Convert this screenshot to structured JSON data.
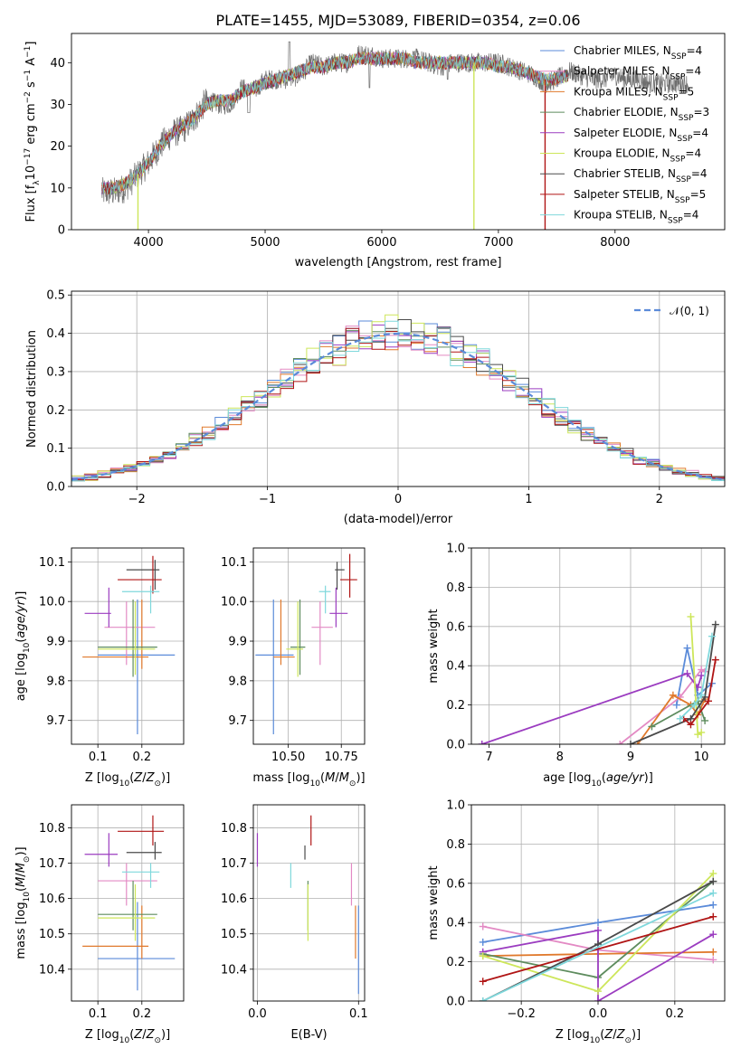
{
  "figure_title": "PLATE=1455, MJD=53089, FIBERID=0354, z=0.06",
  "colors": {
    "Chabrier MILES": "#5b8bd9",
    "Salpeter MILES": "#e38ac4",
    "Kroupa MILES": "#e0792c",
    "Chabrier ELODIE": "#5e8c5e",
    "Salpeter ELODIE": "#9b3cc0",
    "Kroupa ELODIE": "#cde65a",
    "Chabrier STELIB": "#4a4a4a",
    "Salpeter STELIB": "#b01515",
    "Kroupa STELIB": "#7fd8dc",
    "normal": "#5b8bd9"
  },
  "legend_spectrum": [
    {
      "name": "Chabrier MILES",
      "label": "Chabrier MILES, N",
      "sub": "SSP",
      "suffix": "=4"
    },
    {
      "name": "Salpeter MILES",
      "label": "Salpeter MILES, N",
      "sub": "SSP",
      "suffix": "=4"
    },
    {
      "name": "Kroupa MILES",
      "label": "Kroupa MILES, N",
      "sub": "SSP",
      "suffix": "=5"
    },
    {
      "name": "Chabrier ELODIE",
      "label": "Chabrier ELODIE, N",
      "sub": "SSP",
      "suffix": "=3"
    },
    {
      "name": "Salpeter ELODIE",
      "label": "Salpeter ELODIE, N",
      "sub": "SSP",
      "suffix": "=4"
    },
    {
      "name": "Kroupa ELODIE",
      "label": "Kroupa ELODIE, N",
      "sub": "SSP",
      "suffix": "=4"
    },
    {
      "name": "Chabrier STELIB",
      "label": "Chabrier STELIB, N",
      "sub": "SSP",
      "suffix": "=4"
    },
    {
      "name": "Salpeter STELIB",
      "label": "Salpeter STELIB, N",
      "sub": "SSP",
      "suffix": "=5"
    },
    {
      "name": "Kroupa STELIB",
      "label": "Kroupa STELIB, N",
      "sub": "SSP",
      "suffix": "=4"
    }
  ],
  "chart_data": [
    {
      "id": "spectrum",
      "type": "line",
      "xlabel": "wavelength [Angstrom, rest frame]",
      "ylabel": "Flux [f_λ 10^-17 erg cm^-2 s^-1 A^-1]",
      "xlim": [
        3340,
        8940
      ],
      "ylim": [
        0,
        47
      ],
      "xticks": [
        4000,
        5000,
        6000,
        7000,
        8000
      ],
      "yticks": [
        0,
        10,
        20,
        30,
        40
      ],
      "grid": false,
      "legend": "right",
      "data_wavelength": [
        3600,
        3700,
        3800,
        3900,
        4000,
        4100,
        4200,
        4300,
        4400,
        4500,
        4600,
        4700,
        4800,
        4900,
        5000,
        5100,
        5200,
        5300,
        5400,
        5500,
        5600,
        5700,
        5800,
        5900,
        6000,
        6100,
        6200,
        6300,
        6400,
        6500,
        6600,
        6700,
        6800,
        6900,
        7000,
        7100,
        7200,
        7300,
        7400,
        7500,
        7600,
        7700,
        7800,
        7900,
        8000,
        8100,
        8200,
        8300,
        8400,
        8500,
        8600
      ],
      "data_flux": [
        9,
        9,
        10,
        13,
        16,
        20,
        23,
        24,
        27,
        31,
        30,
        30,
        34,
        33,
        36,
        36,
        36,
        37,
        40,
        39,
        40,
        40,
        42,
        42,
        41,
        41,
        41,
        41,
        40,
        39,
        40,
        40,
        40,
        40,
        40,
        39,
        38,
        37,
        35,
        36,
        38,
        37,
        36,
        36,
        37,
        36,
        36,
        35,
        35,
        35,
        35
      ],
      "model_flux": [
        10,
        10,
        11,
        13,
        16,
        20,
        23,
        25,
        27,
        30,
        31,
        31,
        33,
        34,
        35,
        36,
        37,
        38,
        39,
        39,
        40,
        40,
        41,
        41,
        41,
        41,
        41,
        40,
        40,
        40,
        40,
        40,
        40,
        40,
        39,
        39,
        38,
        37,
        36,
        36,
        37,
        37,
        36,
        36,
        36,
        36,
        36,
        35,
        35,
        35,
        35
      ],
      "model_xrange": [
        3600,
        7600
      ],
      "masked_drops": [
        {
          "x": 3910,
          "series": "Kroupa ELODIE"
        },
        {
          "x": 6790,
          "series": "Kroupa ELODIE"
        },
        {
          "x": 7400,
          "series": "Salpeter STELIB"
        }
      ]
    },
    {
      "id": "residuals",
      "type": "histogram",
      "xlabel": "(data-model)/error",
      "ylabel": "Normed distribution",
      "xlim": [
        -2.5,
        2.5
      ],
      "ylim": [
        0,
        0.51
      ],
      "xticks": [
        -2,
        -1,
        0,
        1,
        2
      ],
      "yticks": [
        0.0,
        0.1,
        0.2,
        0.3,
        0.4,
        0.5
      ],
      "grid": true,
      "legend_label": "𝒩(0, 1)",
      "legend": "upper right",
      "bin_edges_start": -2.5,
      "bin_width": 0.1
    },
    {
      "id": "age_vs_Z",
      "type": "errorbar",
      "xlabel": "Z [log10(Z/Z⊙)]",
      "ylabel": "age [log10(age/yr)]",
      "xlim": [
        0.04,
        0.295
      ],
      "ylim": [
        9.64,
        10.135
      ],
      "xticks": [
        0.1,
        0.2
      ],
      "yticks": [
        9.7,
        9.8,
        9.9,
        10.0,
        10.1
      ],
      "grid": true,
      "points": [
        {
          "series": "Chabrier MILES",
          "x": 0.19,
          "y": 9.865,
          "xerr": [
            0.1,
            0.275
          ],
          "yerr": [
            9.665,
            10.005
          ]
        },
        {
          "series": "Salpeter MILES",
          "x": 0.165,
          "y": 9.935,
          "xerr": [
            0.115,
            0.23
          ],
          "yerr": [
            9.84,
            10.0
          ]
        },
        {
          "series": "Kroupa MILES",
          "x": 0.2,
          "y": 9.86,
          "xerr": [
            0.065,
            0.215
          ],
          "yerr": [
            9.83,
            10.005
          ]
        },
        {
          "series": "Chabrier ELODIE",
          "x": 0.18,
          "y": 9.885,
          "xerr": [
            0.1,
            0.235
          ],
          "yerr": [
            9.81,
            10.005
          ]
        },
        {
          "series": "Salpeter ELODIE",
          "x": 0.125,
          "y": 9.97,
          "xerr": [
            0.07,
            0.13
          ],
          "yerr": [
            9.935,
            10.035
          ]
        },
        {
          "series": "Kroupa ELODIE",
          "x": 0.185,
          "y": 9.88,
          "xerr": [
            0.1,
            0.23
          ],
          "yerr": [
            9.815,
            10.0
          ]
        },
        {
          "series": "Chabrier STELIB",
          "x": 0.23,
          "y": 10.08,
          "xerr": [
            0.165,
            0.24
          ],
          "yerr": [
            10.03,
            10.105
          ]
        },
        {
          "series": "Salpeter STELIB",
          "x": 0.225,
          "y": 10.055,
          "xerr": [
            0.145,
            0.245
          ],
          "yerr": [
            10.02,
            10.115
          ]
        },
        {
          "series": "Kroupa STELIB",
          "x": 0.22,
          "y": 10.025,
          "xerr": [
            0.155,
            0.24
          ],
          "yerr": [
            9.97,
            10.04
          ]
        }
      ]
    },
    {
      "id": "age_vs_mass",
      "type": "errorbar",
      "xlabel": "mass [log10(M/M⊙)]",
      "ylabel": "",
      "xlim": [
        10.335,
        10.86
      ],
      "ylim": [
        9.64,
        10.135
      ],
      "xticks": [
        10.5,
        10.75
      ],
      "yticks": [
        9.7,
        9.8,
        9.9,
        10.0,
        10.1
      ],
      "grid": true,
      "points": [
        {
          "series": "Chabrier MILES",
          "x": 10.43,
          "y": 9.865,
          "xerr": [
            10.345,
            10.525
          ],
          "yerr": [
            9.665,
            10.005
          ]
        },
        {
          "series": "Salpeter MILES",
          "x": 10.65,
          "y": 9.935,
          "xerr": [
            10.61,
            10.71
          ],
          "yerr": [
            9.84,
            10.0
          ]
        },
        {
          "series": "Kroupa MILES",
          "x": 10.465,
          "y": 9.86,
          "xerr": [
            10.43,
            10.53
          ],
          "yerr": [
            9.84,
            10.005
          ]
        },
        {
          "series": "Chabrier ELODIE",
          "x": 10.555,
          "y": 9.885,
          "xerr": [
            10.51,
            10.58
          ],
          "yerr": [
            9.815,
            10.005
          ]
        },
        {
          "series": "Salpeter ELODIE",
          "x": 10.725,
          "y": 9.97,
          "xerr": [
            10.695,
            10.78
          ],
          "yerr": [
            9.935,
            10.035
          ]
        },
        {
          "series": "Kroupa ELODIE",
          "x": 10.545,
          "y": 9.88,
          "xerr": [
            10.49,
            10.57
          ],
          "yerr": [
            9.81,
            10.0
          ]
        },
        {
          "series": "Chabrier STELIB",
          "x": 10.73,
          "y": 10.08,
          "xerr": [
            10.72,
            10.765
          ],
          "yerr": [
            10.03,
            10.1
          ]
        },
        {
          "series": "Salpeter STELIB",
          "x": 10.79,
          "y": 10.055,
          "xerr": [
            10.745,
            10.825
          ],
          "yerr": [
            10.01,
            10.12
          ]
        },
        {
          "series": "Kroupa STELIB",
          "x": 10.675,
          "y": 10.025,
          "xerr": [
            10.645,
            10.7
          ],
          "yerr": [
            9.97,
            10.04
          ]
        }
      ]
    },
    {
      "id": "weight_vs_age",
      "type": "line",
      "xlabel": "age  [log10(age/yr)]",
      "ylabel": "mass weight",
      "xlim": [
        6.75,
        10.33
      ],
      "ylim": [
        0,
        1.0
      ],
      "xticks": [
        7,
        8,
        9,
        10
      ],
      "yticks": [
        0.0,
        0.2,
        0.4,
        0.6,
        0.8,
        1.0
      ],
      "grid": true,
      "series": [
        {
          "name": "Chabrier MILES",
          "x": [
            9.65,
            9.8,
            9.95,
            10.15
          ],
          "y": [
            0.2,
            0.49,
            0.25,
            0.31
          ]
        },
        {
          "name": "Salpeter MILES",
          "x": [
            8.85,
            9.7,
            10.0,
            10.05
          ],
          "y": [
            0.0,
            0.24,
            0.38,
            0.37
          ]
        },
        {
          "name": "Kroupa MILES",
          "x": [
            9.1,
            9.6,
            9.85,
            9.95,
            10.05
          ],
          "y": [
            0.0,
            0.25,
            0.2,
            0.15,
            0.23
          ]
        },
        {
          "name": "Chabrier ELODIE",
          "x": [
            9.3,
            9.95,
            10.05
          ],
          "y": [
            0.09,
            0.22,
            0.12
          ]
        },
        {
          "name": "Salpeter ELODIE",
          "x": [
            6.9,
            9.8,
            9.95,
            10.0
          ],
          "y": [
            0.0,
            0.36,
            0.29,
            0.35
          ]
        },
        {
          "name": "Kroupa ELODIE",
          "x": [
            9.85,
            9.95,
            10.0
          ],
          "y": [
            0.65,
            0.05,
            0.06
          ]
        },
        {
          "name": "Chabrier STELIB",
          "x": [
            9.0,
            9.85,
            10.05,
            10.2
          ],
          "y": [
            0.0,
            0.13,
            0.24,
            0.61
          ]
        },
        {
          "name": "Salpeter STELIB",
          "x": [
            9.75,
            9.85,
            10.1,
            10.2
          ],
          "y": [
            0.13,
            0.1,
            0.22,
            0.43
          ]
        },
        {
          "name": "Kroupa STELIB",
          "x": [
            9.7,
            9.9,
            10.0,
            10.15
          ],
          "y": [
            0.13,
            0.2,
            0.25,
            0.55
          ]
        }
      ]
    },
    {
      "id": "mass_vs_Z",
      "type": "errorbar",
      "xlabel": "Z [log10(Z/Z⊙)]",
      "ylabel": "mass [log10(M/M⊙)]",
      "xlim": [
        0.04,
        0.295
      ],
      "ylim": [
        10.31,
        10.865
      ],
      "xticks": [
        0.1,
        0.2
      ],
      "yticks": [
        10.4,
        10.5,
        10.6,
        10.7,
        10.8
      ],
      "grid": true,
      "points": [
        {
          "series": "Chabrier MILES",
          "x": 0.19,
          "y": 10.43,
          "xerr": [
            0.1,
            0.275
          ],
          "yerr": [
            10.34,
            10.59
          ]
        },
        {
          "series": "Salpeter MILES",
          "x": 0.165,
          "y": 10.65,
          "xerr": [
            0.1,
            0.235
          ],
          "yerr": [
            10.58,
            10.7
          ]
        },
        {
          "series": "Kroupa MILES",
          "x": 0.2,
          "y": 10.465,
          "xerr": [
            0.065,
            0.215
          ],
          "yerr": [
            10.43,
            10.58
          ]
        },
        {
          "series": "Chabrier ELODIE",
          "x": 0.18,
          "y": 10.555,
          "xerr": [
            0.1,
            0.235
          ],
          "yerr": [
            10.51,
            10.65
          ]
        },
        {
          "series": "Salpeter ELODIE",
          "x": 0.125,
          "y": 10.725,
          "xerr": [
            0.07,
            0.145
          ],
          "yerr": [
            10.69,
            10.785
          ]
        },
        {
          "series": "Kroupa ELODIE",
          "x": 0.185,
          "y": 10.545,
          "xerr": [
            0.1,
            0.23
          ],
          "yerr": [
            10.48,
            10.64
          ]
        },
        {
          "series": "Chabrier STELIB",
          "x": 0.23,
          "y": 10.73,
          "xerr": [
            0.165,
            0.245
          ],
          "yerr": [
            10.71,
            10.76
          ]
        },
        {
          "series": "Salpeter STELIB",
          "x": 0.225,
          "y": 10.79,
          "xerr": [
            0.145,
            0.25
          ],
          "yerr": [
            10.75,
            10.835
          ]
        },
        {
          "series": "Kroupa STELIB",
          "x": 0.22,
          "y": 10.675,
          "xerr": [
            0.155,
            0.24
          ],
          "yerr": [
            10.63,
            10.7
          ]
        }
      ]
    },
    {
      "id": "mass_vs_ebv",
      "type": "errorbar",
      "xlabel": "E(B-V)",
      "ylabel": "",
      "xlim": [
        -0.004,
        0.106
      ],
      "ylim": [
        10.31,
        10.865
      ],
      "xticks": [
        0.0,
        0.1
      ],
      "yticks": [
        10.4,
        10.5,
        10.6,
        10.7,
        10.8
      ],
      "grid": true,
      "points": [
        {
          "series": "Chabrier MILES",
          "x": 0.1,
          "y": 10.43,
          "yerr": [
            10.33,
            10.58
          ]
        },
        {
          "series": "Salpeter MILES",
          "x": 0.093,
          "y": 10.65,
          "yerr": [
            10.58,
            10.7
          ]
        },
        {
          "series": "Kroupa MILES",
          "x": 0.097,
          "y": 10.465,
          "yerr": [
            10.43,
            10.58
          ]
        },
        {
          "series": "Chabrier ELODIE",
          "x": 0.05,
          "y": 10.555,
          "yerr": [
            10.51,
            10.65
          ]
        },
        {
          "series": "Salpeter ELODIE",
          "x": 0.0,
          "y": 10.725,
          "yerr": [
            10.69,
            10.785
          ]
        },
        {
          "series": "Kroupa ELODIE",
          "x": 0.05,
          "y": 10.545,
          "yerr": [
            10.48,
            10.64
          ]
        },
        {
          "series": "Chabrier STELIB",
          "x": 0.047,
          "y": 10.73,
          "yerr": [
            10.71,
            10.75
          ]
        },
        {
          "series": "Salpeter STELIB",
          "x": 0.053,
          "y": 10.79,
          "yerr": [
            10.75,
            10.835
          ]
        },
        {
          "series": "Kroupa STELIB",
          "x": 0.033,
          "y": 10.675,
          "yerr": [
            10.63,
            10.7
          ]
        }
      ]
    },
    {
      "id": "weight_vs_Z",
      "type": "line",
      "xlabel": "Z [log10(Z/Z⊙)]",
      "ylabel": "mass weight",
      "xlim": [
        -0.33,
        0.33
      ],
      "ylim": [
        0,
        1.0
      ],
      "xticks": [
        -0.2,
        0.0,
        0.2
      ],
      "yticks": [
        0.0,
        0.2,
        0.4,
        0.6,
        0.8,
        1.0
      ],
      "grid": true,
      "series": [
        {
          "name": "Chabrier MILES",
          "x": [
            -0.3,
            0.0,
            0.3
          ],
          "y": [
            0.3,
            0.4,
            0.49
          ]
        },
        {
          "name": "Salpeter MILES",
          "x": [
            -0.3,
            0.0,
            0.3
          ],
          "y": [
            0.38,
            0.26,
            0.21
          ]
        },
        {
          "name": "Kroupa MILES",
          "x": [
            -0.3,
            0.0,
            0.3
          ],
          "y": [
            0.23,
            0.24,
            0.25
          ]
        },
        {
          "name": "Chabrier ELODIE",
          "x": [
            -0.3,
            0.0,
            0.3
          ],
          "y": [
            0.24,
            0.12,
            0.61
          ]
        },
        {
          "name": "Salpeter ELODIE",
          "x": [
            -0.3,
            0.0,
            0.0,
            0.3
          ],
          "y": [
            0.25,
            0.36,
            0.0,
            0.34
          ]
        },
        {
          "name": "Kroupa ELODIE",
          "x": [
            -0.3,
            0.0,
            0.3
          ],
          "y": [
            0.23,
            0.05,
            0.65
          ]
        },
        {
          "name": "Chabrier STELIB",
          "x": [
            -0.3,
            0.0,
            0.3
          ],
          "y": [
            0.0,
            0.29,
            0.61
          ]
        },
        {
          "name": "Salpeter STELIB",
          "x": [
            -0.3,
            0.3
          ],
          "y": [
            0.1,
            0.43
          ]
        },
        {
          "name": "Kroupa STELIB",
          "x": [
            -0.3,
            0.3
          ],
          "y": [
            0.0,
            0.55
          ]
        }
      ]
    }
  ]
}
